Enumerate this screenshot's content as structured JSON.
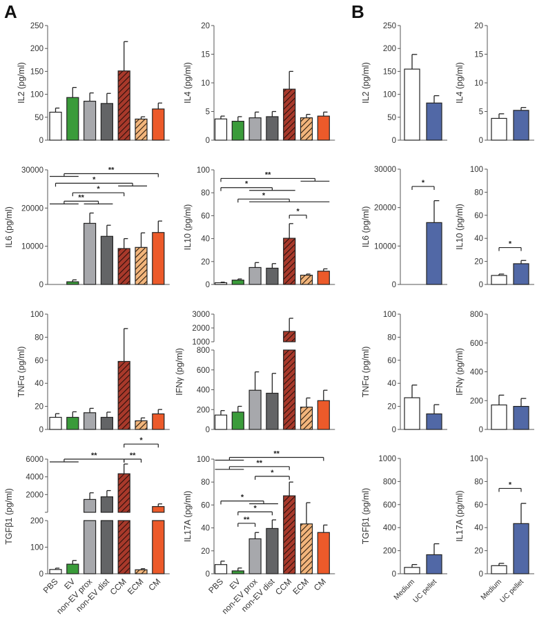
{
  "panel_labels": {
    "a": "A",
    "b": "B"
  },
  "colors": {
    "PBS": "#ffffff",
    "EV": "#3a9b3a",
    "non-EV prox": "#a7a8ac",
    "non-EV dist": "#636466",
    "CCM": "#a8392b",
    "ECM": "#f2b57c",
    "CM": "#ec5a2a",
    "Medium": "#ffffff",
    "UC pellet": "#5168a6"
  },
  "hatched": [
    "CCM",
    "ECM"
  ],
  "chart_data": [
    {
      "id": "A-IL2",
      "panel": "A",
      "type": "bar",
      "ylabel": "IL2 (pg/ml)",
      "categories": [
        "PBS",
        "EV",
        "non-EV prox",
        "non-EV dist",
        "CCM",
        "ECM",
        "CM"
      ],
      "values": [
        61,
        93,
        85,
        80,
        151,
        46,
        68
      ],
      "errors": [
        9,
        22,
        18,
        22,
        64,
        5,
        13
      ],
      "ylim": [
        0,
        250
      ],
      "yticks": [
        0,
        50,
        100,
        150,
        200,
        250
      ],
      "show_xlabels": false,
      "significance": []
    },
    {
      "id": "A-IL4",
      "panel": "A",
      "type": "bar",
      "ylabel": "IL4 (pg/ml)",
      "categories": [
        "PBS",
        "EV",
        "non-EV prox",
        "non-EV dist",
        "CCM",
        "ECM",
        "CM"
      ],
      "values": [
        3.7,
        3.3,
        3.9,
        4.1,
        8.9,
        3.9,
        4.2
      ],
      "errors": [
        0.5,
        0.8,
        1.0,
        0.9,
        3.1,
        0.6,
        0.7
      ],
      "ylim": [
        0,
        20
      ],
      "yticks": [
        0,
        5,
        10,
        15,
        20
      ],
      "show_xlabels": false,
      "significance": []
    },
    {
      "id": "B-IL2",
      "panel": "B",
      "type": "bar",
      "ylabel": "IL2 (pg/ml)",
      "categories": [
        "Medium",
        "UC pellet"
      ],
      "values": [
        155,
        81
      ],
      "errors": [
        32,
        16
      ],
      "ylim": [
        0,
        250
      ],
      "yticks": [
        0,
        50,
        100,
        150,
        200,
        250
      ],
      "show_xlabels": false,
      "significance": []
    },
    {
      "id": "B-IL4",
      "panel": "B",
      "type": "bar",
      "ylabel": "IL4 (pg/ml)",
      "categories": [
        "Medium",
        "UC pellet"
      ],
      "values": [
        3.8,
        5.2
      ],
      "errors": [
        0.8,
        0.5
      ],
      "ylim": [
        0,
        20
      ],
      "yticks": [
        0,
        5,
        10,
        15,
        20
      ],
      "show_xlabels": false,
      "significance": []
    },
    {
      "id": "A-IL6",
      "panel": "A",
      "type": "bar",
      "ylabel": "IL6 (pg/ml)",
      "categories": [
        "PBS",
        "EV",
        "non-EV prox",
        "non-EV dist",
        "CCM",
        "ECM",
        "CM"
      ],
      "values": [
        0,
        700,
        16000,
        12600,
        9400,
        9700,
        13600
      ],
      "errors": [
        0,
        500,
        2700,
        2900,
        2600,
        3800,
        3000
      ],
      "ylim": [
        0,
        30000
      ],
      "yticks": [
        0,
        10000,
        20000,
        30000
      ],
      "show_xlabels": false,
      "significance": [
        {
          "from": [
            0,
            1
          ],
          "to": [
            6,
            6
          ],
          "y": 29000,
          "label": "**"
        },
        {
          "from": [
            0,
            0
          ],
          "to": [
            4,
            5
          ],
          "y": 26500,
          "label": "*"
        },
        {
          "from": [
            1,
            1
          ],
          "to": [
            4,
            4
          ],
          "y": 24000,
          "label": "*"
        },
        {
          "from": [
            0,
            1
          ],
          "to": [
            2,
            3
          ],
          "y": 21800,
          "label": "**"
        }
      ]
    },
    {
      "id": "A-IL10",
      "panel": "A",
      "type": "bar",
      "ylabel": "IL10 (pg/ml)",
      "categories": [
        "PBS",
        "EV",
        "non-EV prox",
        "non-EV dist",
        "CCM",
        "ECM",
        "CM"
      ],
      "values": [
        1.5,
        3.8,
        14.8,
        14.2,
        40.3,
        8.1,
        11.6
      ],
      "errors": [
        0.5,
        1.0,
        4.3,
        4.0,
        12.8,
        1.0,
        2.0
      ],
      "ylim": [
        0,
        100
      ],
      "yticks": [
        0,
        20,
        40,
        60,
        80,
        100
      ],
      "show_xlabels": false,
      "significance": [
        {
          "from": [
            0,
            0
          ],
          "to": [
            5,
            6
          ],
          "y": 92.5,
          "label": "**"
        },
        {
          "from": [
            0,
            0
          ],
          "to": [
            2,
            4
          ],
          "y": 84.5,
          "label": "*"
        },
        {
          "from": [
            1,
            1
          ],
          "to": [
            2,
            6
          ],
          "y": 74.5,
          "label": "*"
        },
        {
          "from": [
            4,
            4
          ],
          "to": [
            5,
            5
          ],
          "y": 60.5,
          "label": "*"
        }
      ]
    },
    {
      "id": "B-IL6",
      "panel": "B",
      "type": "bar",
      "ylabel": "IL6 (pg/ml)",
      "categories": [
        "Medium",
        "UC pellet"
      ],
      "values": [
        0,
        16100
      ],
      "errors": [
        0,
        5700
      ],
      "ylim": [
        0,
        30000
      ],
      "yticks": [
        0,
        10000,
        20000,
        30000
      ],
      "show_xlabels": false,
      "significance": [
        {
          "from": [
            0,
            0
          ],
          "to": [
            1,
            1
          ],
          "y": 25500,
          "label": "*"
        }
      ]
    },
    {
      "id": "B-IL10",
      "panel": "B",
      "type": "bar",
      "ylabel": "IL10 (pg/ml)",
      "categories": [
        "Medium",
        "UC pellet"
      ],
      "values": [
        7.8,
        18
      ],
      "errors": [
        1.2,
        2.8
      ],
      "ylim": [
        0,
        100
      ],
      "yticks": [
        0,
        20,
        40,
        60,
        80,
        100
      ],
      "show_xlabels": false,
      "significance": [
        {
          "from": [
            0,
            0
          ],
          "to": [
            1,
            1
          ],
          "y": 32,
          "label": "*"
        }
      ]
    },
    {
      "id": "A-TNFa",
      "panel": "A",
      "type": "bar",
      "ylabel": "TNFα (pg/ml)",
      "categories": [
        "PBS",
        "EV",
        "non-EV prox",
        "non-EV dist",
        "CCM",
        "ECM",
        "CM"
      ],
      "values": [
        10.5,
        10.5,
        14.5,
        10.5,
        59,
        7.5,
        13.5
      ],
      "errors": [
        3.2,
        4.8,
        3.8,
        4.5,
        28.5,
        2.5,
        3.8
      ],
      "ylim": [
        0,
        100
      ],
      "yticks": [
        0,
        20,
        40,
        60,
        80,
        100
      ],
      "show_xlabels": false,
      "significance": []
    },
    {
      "id": "A-IFNg",
      "panel": "A",
      "type": "bar",
      "ylabel": "IFNγ (pg/ml)",
      "categories": [
        "PBS",
        "EV",
        "non-EV prox",
        "non-EV dist",
        "CCM",
        "ECM",
        "CM"
      ],
      "values": [
        145,
        175,
        395,
        365,
        1750,
        225,
        290
      ],
      "errors": [
        45,
        58,
        185,
        200,
        950,
        92,
        105
      ],
      "ylim": [
        0,
        3000
      ],
      "axis_break": {
        "lower": [
          0,
          800
        ],
        "upper": [
          1000,
          3000
        ]
      },
      "yticks": [
        0,
        200,
        400,
        600,
        800,
        1000,
        2000,
        3000
      ],
      "show_xlabels": false,
      "significance": []
    },
    {
      "id": "B-TNFa",
      "panel": "B",
      "type": "bar",
      "ylabel": "TNFα (pg/ml)",
      "categories": [
        "Medium",
        "UC pellet"
      ],
      "values": [
        27.5,
        13.5
      ],
      "errors": [
        11,
        8
      ],
      "ylim": [
        0,
        100
      ],
      "yticks": [
        0,
        20,
        40,
        60,
        80,
        100
      ],
      "show_xlabels": false,
      "significance": []
    },
    {
      "id": "B-IFNg",
      "panel": "B",
      "type": "bar",
      "ylabel": "IFNγ (pg/ml)",
      "categories": [
        "Medium",
        "UC pellet"
      ],
      "values": [
        170,
        160
      ],
      "errors": [
        68,
        55
      ],
      "ylim": [
        0,
        800
      ],
      "yticks": [
        0,
        200,
        400,
        600,
        800
      ],
      "show_xlabels": false,
      "significance": []
    },
    {
      "id": "A-TGFb1",
      "panel": "A",
      "type": "bar",
      "ylabel": "TGFβ1 (pg/ml)",
      "categories": [
        "PBS",
        "EV",
        "non-EV prox",
        "non-EV dist",
        "CCM",
        "ECM",
        "CM"
      ],
      "values": [
        16,
        36,
        1450,
        1750,
        4350,
        15,
        650
      ],
      "errors": [
        5,
        14,
        750,
        700,
        1100,
        4,
        300
      ],
      "ylim": [
        0,
        6000
      ],
      "axis_break": {
        "lower": [
          0,
          200
        ],
        "upper": [
          200,
          6000
        ]
      },
      "yticks": [
        0,
        100,
        200,
        2000,
        4000,
        6000
      ],
      "show_xlabels": true,
      "significance": [
        {
          "from": [
            0,
            1
          ],
          "to": [
            4,
            4
          ],
          "y": 6000,
          "label": "**"
        },
        {
          "from": [
            4,
            4
          ],
          "to": [
            5,
            5
          ],
          "y": 6000,
          "label": "**"
        },
        {
          "from": [
            4,
            4
          ],
          "to": [
            6,
            6
          ],
          "y": 7700,
          "label": "*"
        }
      ]
    },
    {
      "id": "A-IL17A",
      "panel": "A",
      "type": "bar",
      "ylabel": "IL17A (pg/ml)",
      "categories": [
        "PBS",
        "EV",
        "non-EV prox",
        "non-EV dist",
        "CCM",
        "ECM",
        "CM"
      ],
      "values": [
        8,
        2.5,
        30.5,
        39.5,
        68,
        43.5,
        36
      ],
      "errors": [
        3,
        2.5,
        5.5,
        7.5,
        12,
        18.5,
        6.5
      ],
      "ylim": [
        0,
        100
      ],
      "yticks": [
        0,
        20,
        40,
        60,
        80,
        100
      ],
      "show_xlabels": true,
      "significance": [
        {
          "from": [
            0,
            1
          ],
          "to": [
            6,
            6
          ],
          "y": 101.5,
          "label": "**"
        },
        {
          "from": [
            0,
            1
          ],
          "to": [
            4,
            4
          ],
          "y": 93.5,
          "label": "**"
        },
        {
          "from": [
            2,
            2
          ],
          "to": [
            4,
            4
          ],
          "y": 85,
          "label": "*"
        },
        {
          "from": [
            0,
            0
          ],
          "to": [
            2,
            3
          ],
          "y": 63.5,
          "label": "*"
        },
        {
          "from": [
            1,
            1
          ],
          "to": [
            3,
            3
          ],
          "y": 54,
          "label": "*"
        },
        {
          "from": [
            1,
            1
          ],
          "to": [
            2,
            2
          ],
          "y": 44,
          "label": "**"
        }
      ]
    },
    {
      "id": "B-TGFb1",
      "panel": "B",
      "type": "bar",
      "ylabel": "TGFβ1 (pg/ml)",
      "categories": [
        "Medium",
        "UC pellet"
      ],
      "values": [
        55,
        165
      ],
      "errors": [
        25,
        95
      ],
      "ylim": [
        0,
        1000
      ],
      "yticks": [
        0,
        200,
        400,
        600,
        800,
        1000
      ],
      "show_xlabels": true,
      "significance": []
    },
    {
      "id": "B-IL17A",
      "panel": "B",
      "type": "bar",
      "ylabel": "IL17A (pg/ml)",
      "categories": [
        "Medium",
        "UC pellet"
      ],
      "values": [
        7,
        43.5
      ],
      "errors": [
        2,
        17.5
      ],
      "ylim": [
        0,
        100
      ],
      "yticks": [
        0,
        20,
        40,
        60,
        80,
        100
      ],
      "show_xlabels": true,
      "significance": [
        {
          "from": [
            0,
            0
          ],
          "to": [
            1,
            1
          ],
          "y": 74,
          "label": "*"
        }
      ]
    }
  ]
}
